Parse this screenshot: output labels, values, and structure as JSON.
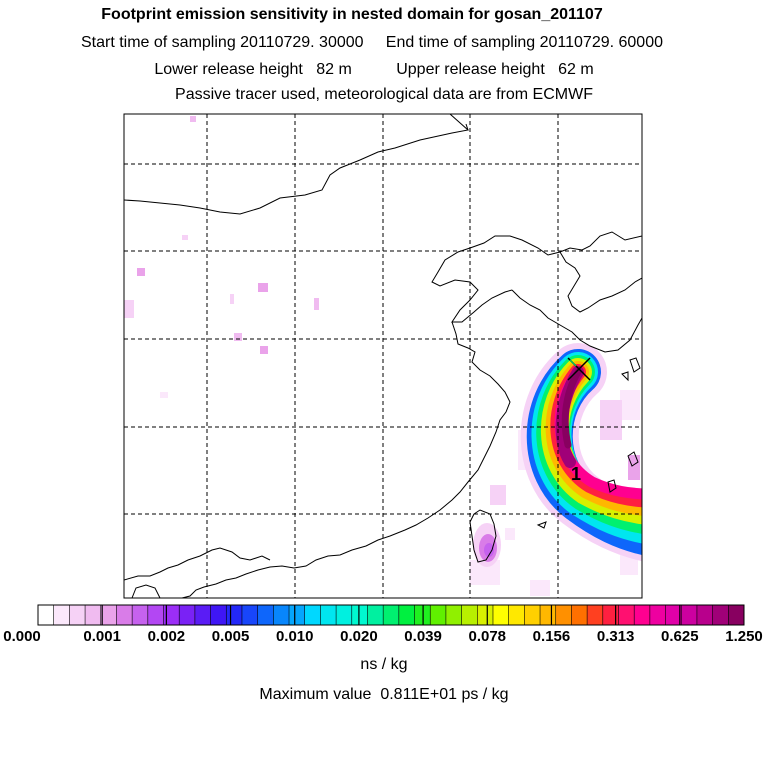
{
  "header": {
    "title": "Footprint emission sensitivity in nested domain for gosan_201107",
    "sampling": "Start time of sampling 20110729. 30000     End time of sampling 20110729. 60000",
    "release": "Lower release height   82 m          Upper release height   62 m",
    "tracer": "Passive tracer used, meteorological data are from ECMWF"
  },
  "map": {
    "receptor_label": "1",
    "land_outline_color": "#000000",
    "grid_color": "#000000"
  },
  "colorbar": {
    "tick_labels": [
      "0.000",
      "0.001",
      "0.002",
      "0.005",
      "0.010",
      "0.020",
      "0.039",
      "0.078",
      "0.156",
      "0.313",
      "0.625",
      "1.250"
    ],
    "colors": [
      "#ffffff",
      "#fbe8fb",
      "#f6d2f6",
      "#f0bbf0",
      "#eaa3ea",
      "#d97ce8",
      "#c662ee",
      "#b347f3",
      "#9b2ef7",
      "#7a22f5",
      "#5a1cf5",
      "#3f16f5",
      "#2328f8",
      "#1846fa",
      "#0e66fb",
      "#0886fc",
      "#05a6fd",
      "#00d8ff",
      "#00e6f0",
      "#00f0e0",
      "#00f8d0",
      "#00f0a0",
      "#00f070",
      "#00f040",
      "#20f020",
      "#60f000",
      "#90f000",
      "#b8f000",
      "#d8f000",
      "#ffff00",
      "#ffe800",
      "#ffd000",
      "#ffb800",
      "#ff9000",
      "#ff7000",
      "#ff4020",
      "#ff2040",
      "#ff1070",
      "#ff0090",
      "#ee00a0",
      "#e000a8",
      "#cc00a0",
      "#b8008c",
      "#a00078",
      "#880060"
    ],
    "units": "ns / kg"
  },
  "footer": {
    "max_value": "Maximum value  0.811E+01 ps / kg"
  }
}
